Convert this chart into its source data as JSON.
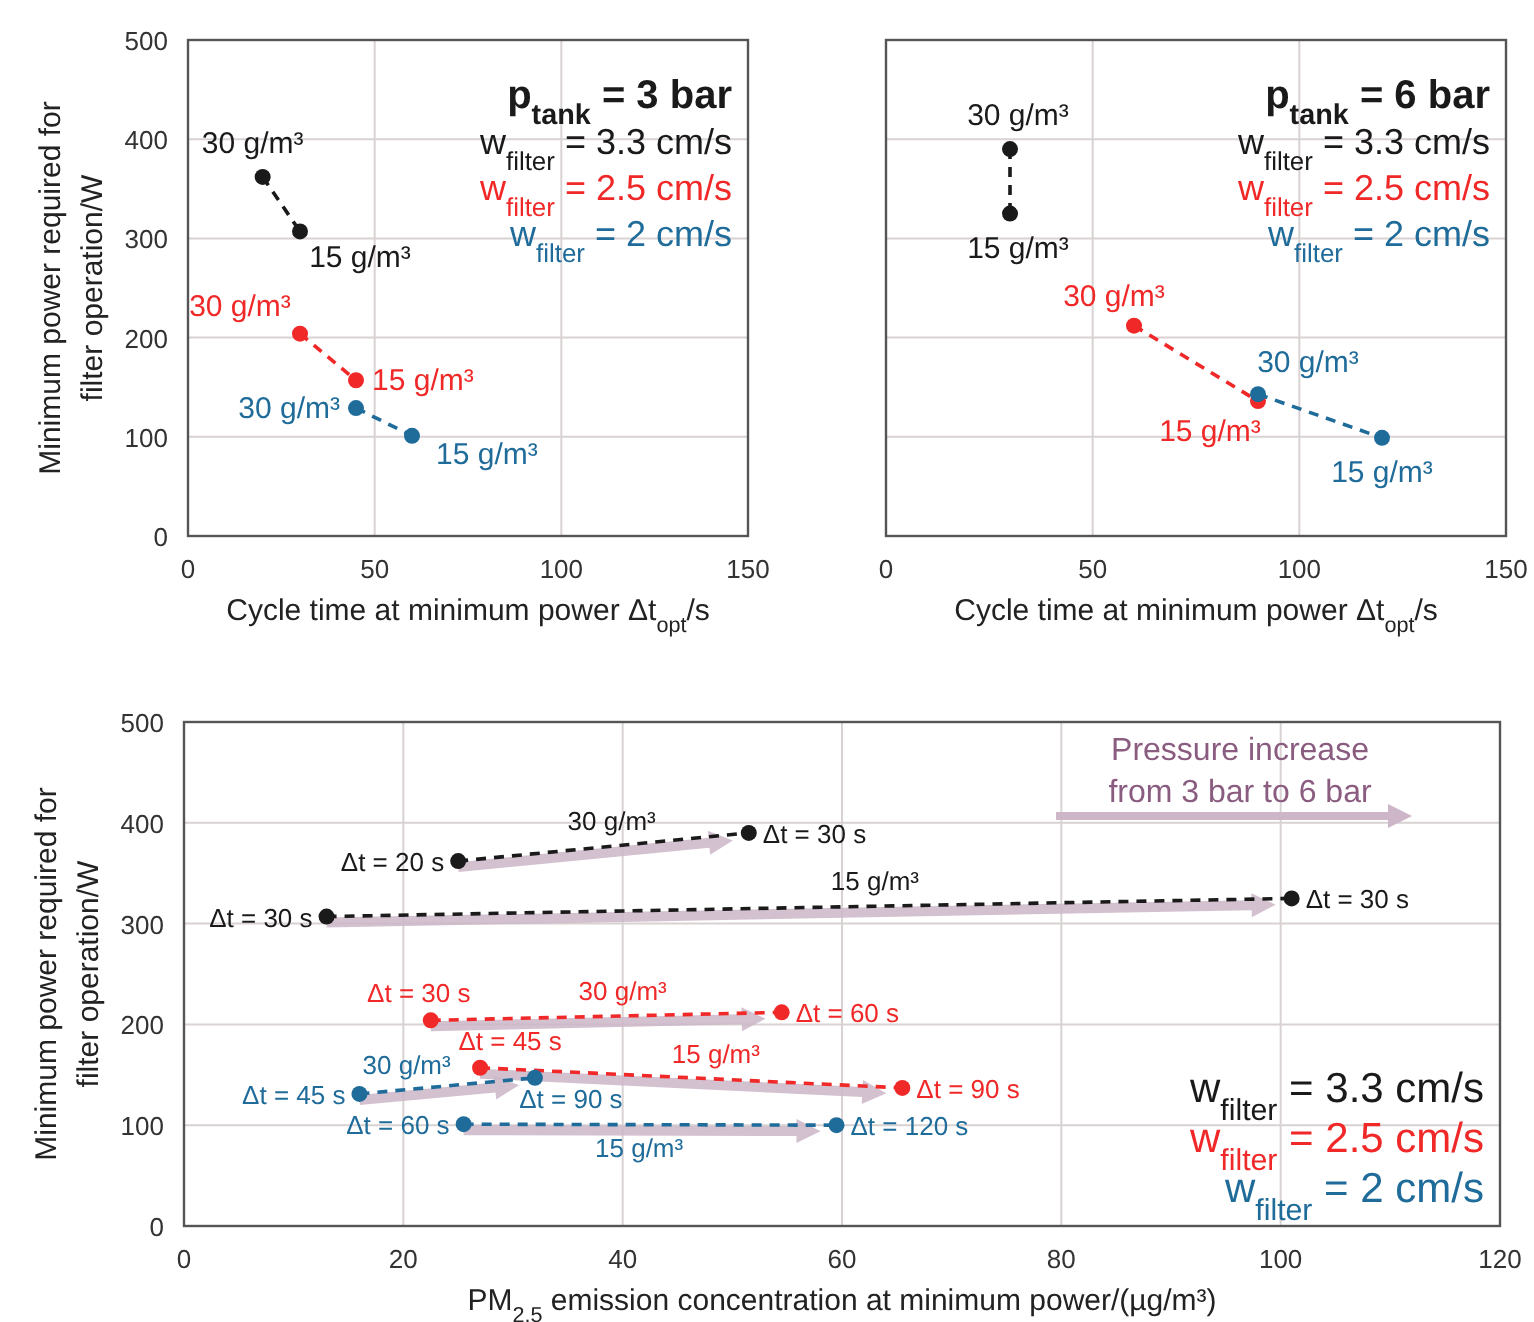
{
  "chart_data": [
    {
      "type": "line",
      "xlabel": "Cycle time at minimum power Δt$_{opt}$/s",
      "ylabel": "Minimum power required for filter operation/W",
      "legend_title": "p$_{tank}$ = 3 bar",
      "legend": "top right",
      "grid": true,
      "marker": "circle",
      "line_style": "dashed",
      "xlim": [
        0,
        150
      ],
      "xticks": [
        0,
        50,
        100,
        150
      ],
      "ylim": [
        0,
        500
      ],
      "yticks": [
        0,
        100,
        200,
        300,
        400,
        500
      ],
      "series": [
        {
          "name": "w$_{filter}$ = 3.3 cm/s",
          "color": "#1a1a1a",
          "x": [
            20,
            30
          ],
          "values": [
            362,
            307
          ]
        },
        {
          "name": "w$_{filter}$ = 2.5 cm/s",
          "color": "#f02828",
          "x": [
            30,
            45
          ],
          "values": [
            204,
            157
          ]
        },
        {
          "name": "w$_{filter}$ = 2 cm/s",
          "color": "#1f6b9a",
          "x": [
            45,
            60
          ],
          "values": [
            129,
            101
          ]
        }
      ],
      "annotations": [
        {
          "text": "30 g/m³",
          "x": 20,
          "y": 362
        },
        {
          "text": "15 g/m³",
          "x": 30,
          "y": 307
        },
        {
          "text": "30 g/m³",
          "x": 30,
          "y": 204
        },
        {
          "text": "15 g/m³",
          "x": 45,
          "y": 157
        },
        {
          "text": "30 g/m³",
          "x": 45,
          "y": 129
        },
        {
          "text": "15 g/m³",
          "x": 60,
          "y": 101
        }
      ]
    },
    {
      "type": "line",
      "xlabel": "Cycle time at minimum power Δt$_{opt}$/s",
      "legend_title": "p$_{tank}$ = 6 bar",
      "legend": "top right",
      "grid": true,
      "marker": "circle",
      "line_style": "dashed",
      "tick_labels": "x",
      "xlim": [
        0,
        150
      ],
      "xticks": [
        0,
        50,
        100,
        150
      ],
      "ylim": [
        0,
        500
      ],
      "yticks": [
        0,
        100,
        200,
        300,
        400,
        500
      ],
      "series": [
        {
          "name": "w$_{filter}$ = 3.3 cm/s",
          "color": "#1a1a1a",
          "x": [
            30,
            30
          ],
          "values": [
            390,
            325
          ]
        },
        {
          "name": "w$_{filter}$ = 2.5 cm/s",
          "color": "#f02828",
          "x": [
            60,
            90
          ],
          "values": [
            212,
            136
          ]
        },
        {
          "name": "w$_{filter}$ = 2 cm/s",
          "color": "#1f6b9a",
          "x": [
            90,
            120
          ],
          "values": [
            143,
            99
          ]
        }
      ],
      "annotations": [
        {
          "text": "30 g/m³",
          "x": 30,
          "y": 390
        },
        {
          "text": "15 g/m³",
          "x": 30,
          "y": 325
        },
        {
          "text": "30 g/m³",
          "x": 60,
          "y": 212
        },
        {
          "text": "15 g/m³",
          "x": 90,
          "y": 136
        },
        {
          "text": "30 g/m³",
          "x": 90,
          "y": 143
        },
        {
          "text": "15 g/m³",
          "x": 120,
          "y": 99
        }
      ]
    },
    {
      "type": "line",
      "xlabel": "PM$_{2.5}$ emission concentration at minimum power/(µg/m³)",
      "ylabel": "Minimum power required for filter operation/W",
      "legend": "bottom right",
      "grid": true,
      "marker": "circle",
      "line_style": "dashed",
      "xlim": [
        0,
        120
      ],
      "xticks": [
        0,
        20,
        40,
        60,
        80,
        100,
        120
      ],
      "ylim": [
        0,
        500
      ],
      "yticks": [
        0,
        100,
        200,
        300,
        400,
        500
      ],
      "series": [
        {
          "name": "w$_{filter}$ = 3.3 cm/s",
          "color": "#1a1a1a",
          "x": [
            25,
            51.5
          ],
          "values": [
            362,
            390
          ]
        },
        {
          "color": "#1a1a1a",
          "x": [
            13,
            101
          ],
          "values": [
            307,
            325
          ]
        },
        {
          "name": "w$_{filter}$ = 2.5 cm/s",
          "color": "#f02828",
          "x": [
            22.5,
            54.5
          ],
          "values": [
            204,
            212
          ]
        },
        {
          "color": "#f02828",
          "x": [
            27,
            65.5
          ],
          "values": [
            157,
            137
          ]
        },
        {
          "name": "w$_{filter}$ = 2 cm/s",
          "color": "#1f6b9a",
          "x": [
            16,
            32
          ],
          "values": [
            131,
            147
          ]
        },
        {
          "color": "#1f6b9a",
          "x": [
            25.5,
            59.5
          ],
          "values": [
            101,
            100
          ]
        }
      ],
      "annotations": [
        "Pressure increase from 3 bar to 6 bar",
        {
          "text": "Δt = 20 s",
          "x": 25,
          "y": 362
        },
        {
          "text": "Δt = 30 s",
          "x": 51.5,
          "y": 390
        },
        {
          "text": "30 g/m³",
          "x": 39,
          "y": 377
        },
        {
          "text": "Δt = 30 s",
          "x": 13,
          "y": 307
        },
        {
          "text": "Δt = 30 s",
          "x": 101,
          "y": 325
        },
        {
          "text": "15 g/m³",
          "x": 63,
          "y": 317
        },
        {
          "text": "Δt = 30 s",
          "x": 22.5,
          "y": 204
        },
        {
          "text": "Δt = 60 s",
          "x": 54.5,
          "y": 212
        },
        {
          "text": "30 g/m³",
          "x": 40,
          "y": 208
        },
        {
          "text": "Δt = 45 s",
          "x": 27,
          "y": 157
        },
        {
          "text": "Δt = 90 s",
          "x": 65.5,
          "y": 137
        },
        {
          "text": "15 g/m³",
          "x": 48.5,
          "y": 146
        },
        {
          "text": "Δt = 45 s",
          "x": 16,
          "y": 131
        },
        {
          "text": "Δt = 90 s",
          "x": 32,
          "y": 147
        },
        {
          "text": "30 g/m³",
          "x": 20.3,
          "y": 135
        },
        {
          "text": "Δt = 60 s",
          "x": 25.5,
          "y": 101
        },
        {
          "text": "Δt = 120 s",
          "x": 59.5,
          "y": 100
        },
        {
          "text": "15 g/m³",
          "x": 41.5,
          "y": 100.5
        }
      ]
    }
  ]
}
